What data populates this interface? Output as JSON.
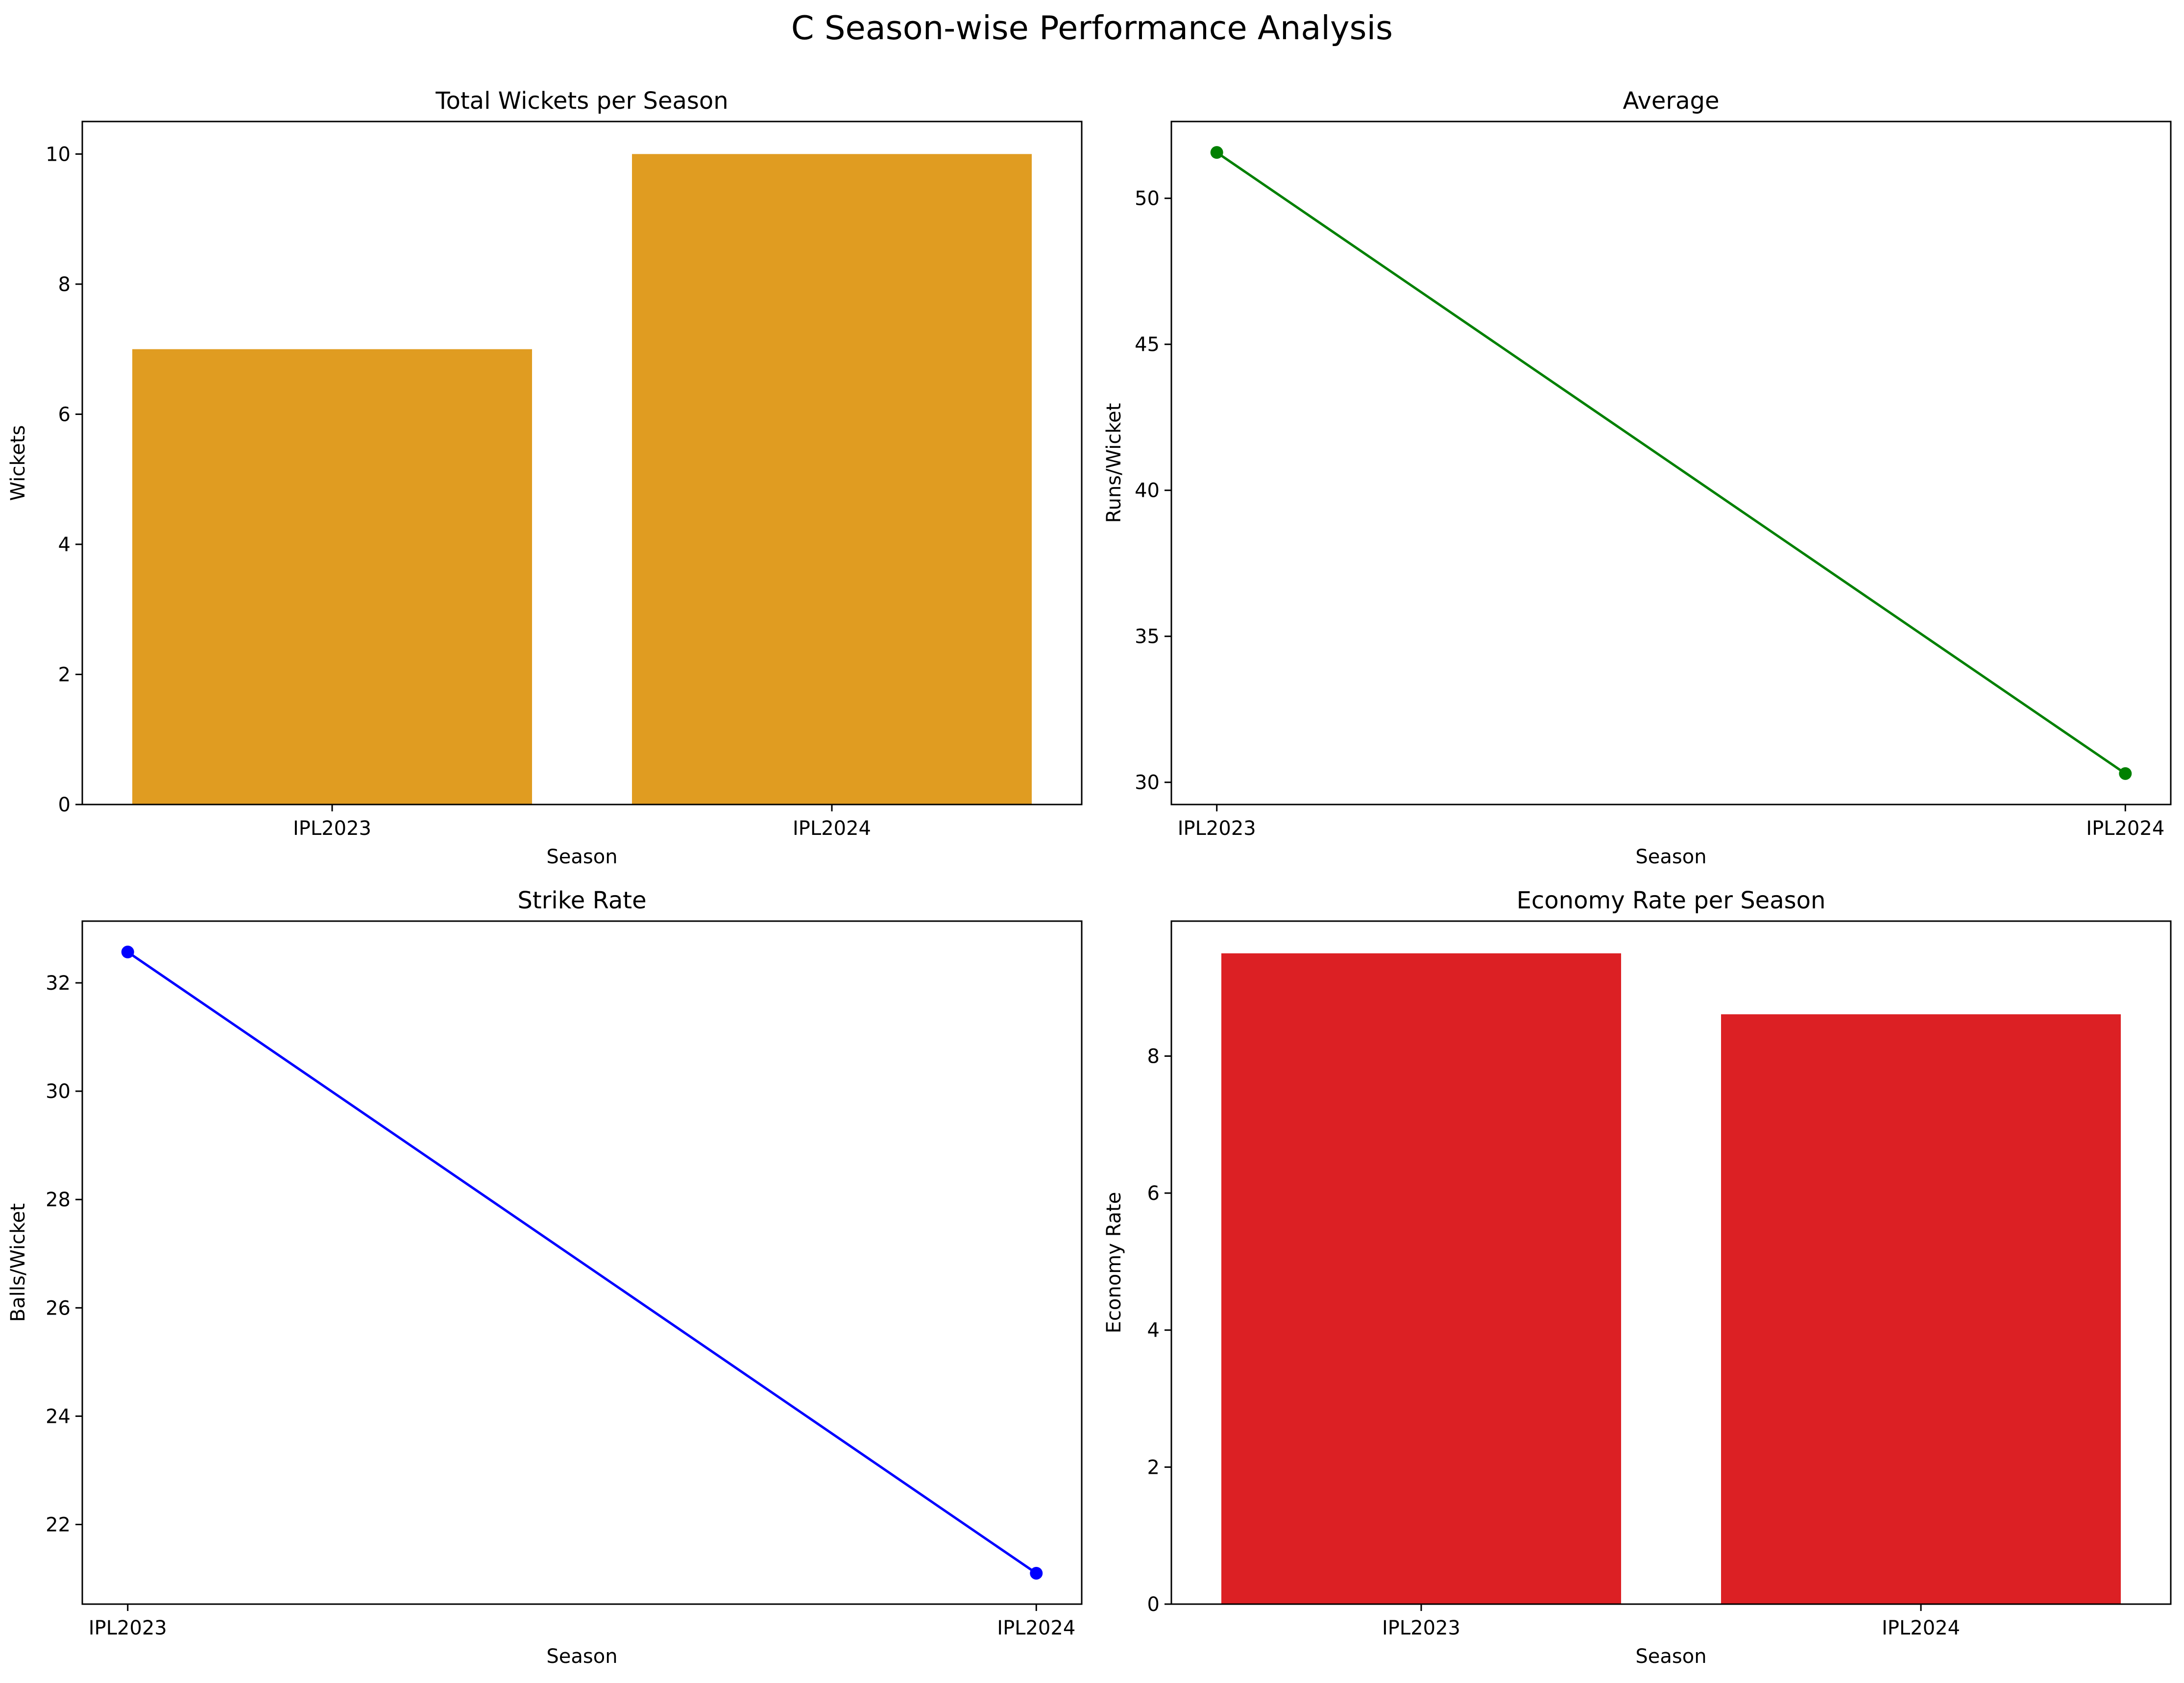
{
  "figure": {
    "title": "C Season-wise Performance Analysis"
  },
  "chart_data": [
    {
      "type": "bar",
      "title": "Total Wickets per Season",
      "xlabel": "Season",
      "ylabel": "Wickets",
      "categories": [
        "IPL2023",
        "IPL2024"
      ],
      "values": [
        7,
        10
      ],
      "ylim": [
        0,
        10.5
      ],
      "yticks": [
        0,
        2,
        4,
        6,
        8,
        10
      ],
      "color": "#e09c21",
      "grid": false,
      "legend": "none"
    },
    {
      "type": "line",
      "title": "Average",
      "xlabel": "Season",
      "ylabel": "Runs/Wicket",
      "categories": [
        "IPL2023",
        "IPL2024"
      ],
      "values": [
        51.57,
        30.3
      ],
      "ylim": [
        29.24,
        52.63
      ],
      "yticks": [
        30,
        35,
        40,
        45,
        50
      ],
      "color": "#008000",
      "marker": "circle",
      "grid": false,
      "legend": "none"
    },
    {
      "type": "line",
      "title": "Strike Rate",
      "xlabel": "Season",
      "ylabel": "Balls/Wicket",
      "categories": [
        "IPL2023",
        "IPL2024"
      ],
      "values": [
        32.57,
        21.1
      ],
      "ylim": [
        20.53,
        33.14
      ],
      "yticks": [
        22,
        24,
        26,
        28,
        30,
        32
      ],
      "color": "#0000ff",
      "marker": "circle",
      "grid": false,
      "legend": "none"
    },
    {
      "type": "bar",
      "title": "Economy Rate per Season",
      "xlabel": "Season",
      "ylabel": "Economy Rate",
      "categories": [
        "IPL2023",
        "IPL2024"
      ],
      "values": [
        9.5,
        8.61
      ],
      "ylim": [
        0,
        9.97
      ],
      "yticks": [
        0,
        2,
        4,
        6,
        8
      ],
      "color": "#dc2024",
      "grid": false,
      "legend": "none"
    }
  ]
}
